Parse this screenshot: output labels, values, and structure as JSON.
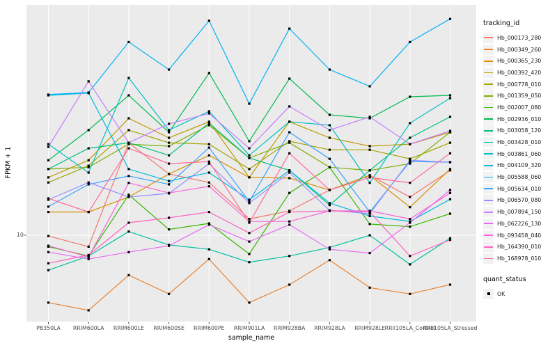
{
  "chart": {
    "y_axis_title": "FPKM + 1",
    "x_axis_title": "sample_name",
    "y_tick_label": "10"
  },
  "legend": {
    "tracking_title": "tracking_id",
    "quant_title": "quant_status",
    "quant_ok_label": "OK"
  },
  "style": {
    "panel_bg": "#EBEBEB",
    "grid_color": "#FFFFFF",
    "point_color": "#000000",
    "axis_text_color": "#4D4D4D",
    "tick_color": "#333333",
    "legend_key_bg": "#F2F2F2"
  },
  "chart_data": {
    "type": "line",
    "title": "",
    "xlabel": "sample_name",
    "ylabel": "FPKM + 1",
    "y_scale": "log10",
    "y_breaks": [
      10
    ],
    "ylim": [
      3.2,
      210
    ],
    "grid": true,
    "legend_position": "right",
    "point_marker": "black-square (quant_status OK)",
    "categories": [
      "PB350LA",
      "RRIM600LA",
      "RRIM600LE",
      "RRIM600SE",
      "RRIM600PE",
      "RRIM901LA",
      "RRIM928BA",
      "RRIM928LA",
      "RRIM928LE",
      "RRII105LA_Control",
      "RRII105LA_Stressed"
    ],
    "series": [
      {
        "name": "Hb_000173_280",
        "color": "#F8766D",
        "values": [
          9.9,
          8.6,
          34,
          22.5,
          20.1,
          12.4,
          13.8,
          18.2,
          22.1,
          16.6,
          23.6
        ]
      },
      {
        "name": "Hb_000349_260",
        "color": "#EA8331",
        "values": [
          4.1,
          3.7,
          5.9,
          4.6,
          7.3,
          4.1,
          5.2,
          7.2,
          5.0,
          4.6,
          5.2
        ]
      },
      {
        "name": "Hb_000365_230",
        "color": "#D89000",
        "values": [
          13.6,
          13.6,
          16.6,
          22.5,
          28.8,
          21.5,
          21.3,
          18.2,
          22.1,
          14.5,
          24.0
        ]
      },
      {
        "name": "Hb_000392_420",
        "color": "#C09B00",
        "values": [
          21.5,
          27.0,
          47.0,
          36.3,
          44.9,
          21.5,
          44.9,
          36.3,
          32.5,
          33.4,
          39.1
        ]
      },
      {
        "name": "Hb_000778_010",
        "color": "#A3A500",
        "values": [
          20.1,
          25.1,
          40.2,
          34.0,
          33.4,
          24.0,
          34.7,
          31.0,
          31.0,
          27.5,
          34.0
        ]
      },
      {
        "name": "Hb_001359_050",
        "color": "#7CAE00",
        "values": [
          24.0,
          24.6,
          33.4,
          32.5,
          42.9,
          27.8,
          34.0,
          24.6,
          23.6,
          25.8,
          39.1
        ]
      },
      {
        "name": "Hb_002007_080",
        "color": "#39B600",
        "values": [
          8.6,
          7.6,
          17.1,
          10.8,
          11.7,
          7.8,
          17.5,
          24.6,
          11.6,
          11.2,
          13.3
        ]
      },
      {
        "name": "Hb_002936_010",
        "color": "#00BB4E",
        "values": [
          27.0,
          40.2,
          63.7,
          39.1,
          85.5,
          34.7,
          79.4,
          49.2,
          47.0,
          62.5,
          63.7
        ]
      },
      {
        "name": "Hb_003058_120",
        "color": "#00BF7D",
        "values": [
          24.0,
          31.6,
          34.0,
          28.8,
          44.1,
          27.8,
          23.6,
          14.9,
          23.6,
          36.3,
          47.9
        ]
      },
      {
        "name": "Hb_003428_010",
        "color": "#00C1A3",
        "values": [
          6.3,
          7.6,
          10.5,
          8.8,
          8.3,
          7.0,
          7.6,
          8.5,
          10.0,
          6.8,
          9.6
        ]
      },
      {
        "name": "Hb_003861_060",
        "color": "#00BFC4",
        "values": [
          33.4,
          22.9,
          80.2,
          40.2,
          51.5,
          28.8,
          44.9,
          42.9,
          20.0,
          44.1,
          61.4
        ]
      },
      {
        "name": "Hb_004109_320",
        "color": "#00BAE0",
        "values": [
          63.7,
          65.6,
          24.0,
          20.5,
          22.9,
          16.0,
          23.6,
          15.3,
          12.9,
          12.0,
          16.1
        ]
      },
      {
        "name": "Hb_005588_060",
        "color": "#00B0F6",
        "values": [
          64.3,
          66.1,
          129,
          89.5,
          171,
          57.0,
          154,
          89.5,
          71.8,
          129,
          175
        ]
      },
      {
        "name": "Hb_005634_010",
        "color": "#35A2FF",
        "values": [
          14.6,
          19.6,
          21.9,
          19.6,
          31.9,
          15.6,
          39.1,
          27.5,
          13.6,
          26.5,
          26.3
        ]
      },
      {
        "name": "Hb_006570_080",
        "color": "#9590FF",
        "values": [
          16.0,
          20.1,
          16.6,
          17.4,
          25.8,
          15.3,
          22.9,
          13.9,
          13.3,
          27.0,
          26.3
        ]
      },
      {
        "name": "Hb_007894_150",
        "color": "#C77CFF",
        "values": [
          32.2,
          76.6,
          34.0,
          43.7,
          50.1,
          31.6,
          55.0,
          40.2,
          47.9,
          33.4,
          39.8
        ]
      },
      {
        "name": "Hb_062226_130",
        "color": "#E76BF3",
        "values": [
          8.0,
          7.3,
          8.0,
          8.7,
          11.5,
          9.2,
          11.5,
          8.3,
          7.9,
          11.8,
          18.2
        ]
      },
      {
        "name": "Hb_093458_040",
        "color": "#FA62DB",
        "values": [
          8.7,
          7.5,
          20.0,
          17.5,
          19.1,
          12.0,
          12.0,
          13.8,
          13.8,
          12.4,
          17.5
        ]
      },
      {
        "name": "Hb_164390_010",
        "color": "#FF61C3",
        "values": [
          6.9,
          7.7,
          11.8,
          12.6,
          13.6,
          10.3,
          13.6,
          13.8,
          13.6,
          7.6,
          9.4
        ]
      },
      {
        "name": "Hb_168978_010",
        "color": "#FF6A98",
        "values": [
          16.3,
          13.6,
          31.6,
          25.8,
          26.5,
          11.8,
          29.6,
          18.2,
          21.5,
          20.0,
          29.6
        ]
      }
    ]
  }
}
